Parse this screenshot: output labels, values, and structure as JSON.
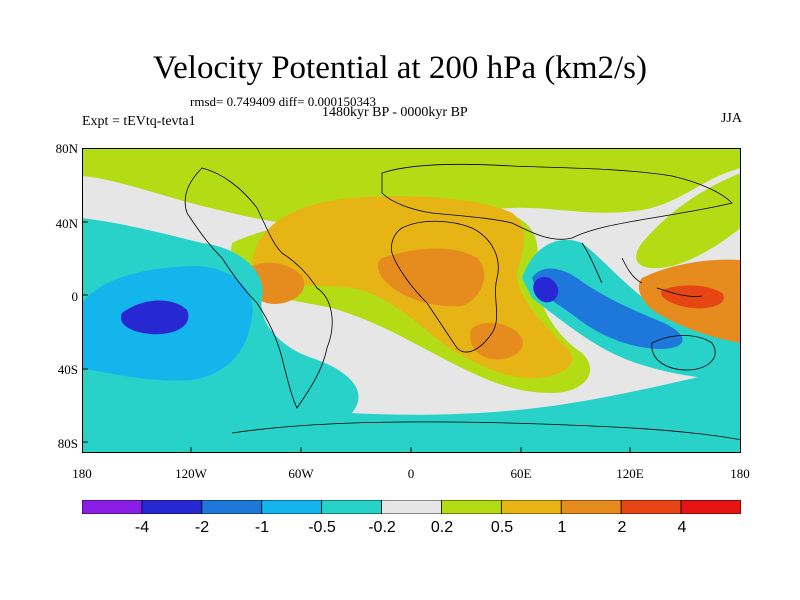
{
  "title": "Velocity Potential at 200 hPa (km2/s)",
  "stats": "rmsd= 0.749409 diff= 0.000150343",
  "period": "1480kyr BP - 0000kyr BP",
  "experiment": "Expt = tEVtq-tevta1",
  "season": "JJA",
  "lat_labels": [
    "80N",
    "40N",
    "0",
    "40S",
    "80S"
  ],
  "lon_labels": [
    "180",
    "120W",
    "60W",
    "0",
    "60E",
    "120E",
    "180"
  ],
  "colorbar": {
    "labels": [
      "-4",
      "-2",
      "-1",
      "-0.5",
      "-0.2",
      "0.2",
      "0.5",
      "1",
      "2",
      "4"
    ],
    "colors": [
      "#8a1ee6",
      "#2828d2",
      "#1e78dc",
      "#14b4ec",
      "#28d2c8",
      "#e6e6e6",
      "#b4dc14",
      "#e6b414",
      "#e68c1e",
      "#e64614",
      "#e61414"
    ]
  },
  "fill_colors": {
    "land_hi": "#e6b414",
    "land_core": "#e68c1e",
    "neutral": "#e6e6e6",
    "weak_neg": "#28d2c8",
    "neg": "#14b4ec",
    "mid_neg": "#1e78dc",
    "strong_neg": "#2828d2",
    "weak_pos": "#b4dc14",
    "pos_core": "#e64614"
  }
}
